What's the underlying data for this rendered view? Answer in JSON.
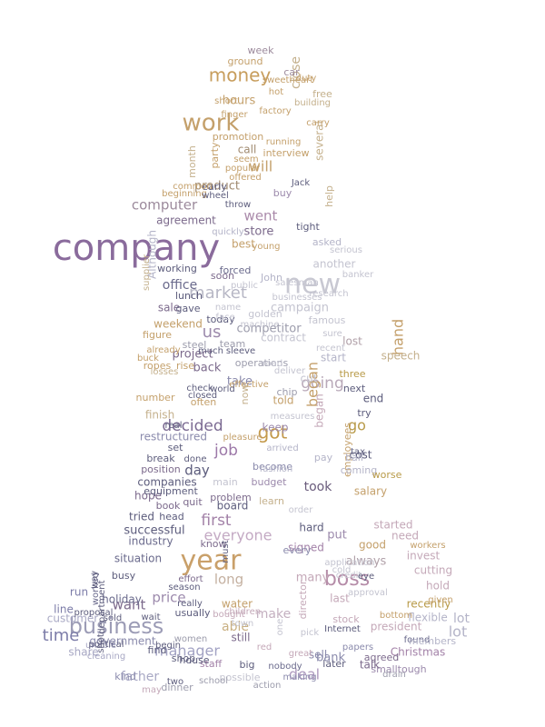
{
  "palette": {
    "background": "#ffffff",
    "purple": "#8a6b9c",
    "tan": "#c9a06a",
    "gray": "#b9b9c4",
    "navy": "#34406d",
    "teal": "#6aa59a",
    "lavender": "#a992c8",
    "pink": "#c79aae"
  },
  "words": [
    {
      "text": "company",
      "color": "#8a6b9c"
    },
    {
      "text": "year",
      "color": "#c9a06a"
    },
    {
      "text": "business",
      "color": "#9c9cb6"
    },
    {
      "text": "new",
      "color": "#c8c8d2"
    },
    {
      "text": "work",
      "color": "#c4a06b"
    },
    {
      "text": "boss",
      "color": "#b58ca8"
    },
    {
      "text": "money",
      "color": "#c79d5c"
    },
    {
      "text": "market",
      "color": "#b7b7c5"
    },
    {
      "text": "decided",
      "color": "#7b6a92"
    },
    {
      "text": "job",
      "color": "#9c78a8"
    },
    {
      "text": "got",
      "color": "#c49a4c"
    },
    {
      "text": "going",
      "color": "#b9a9b9"
    },
    {
      "text": "time",
      "color": "#7c7ca8"
    },
    {
      "text": "manager",
      "color": "#a3a3c4"
    },
    {
      "text": "computer",
      "color": "#9c8a9c"
    },
    {
      "text": "took",
      "color": "#6a5c7c"
    },
    {
      "text": "first",
      "color": "#a382a8"
    },
    {
      "text": "everyone",
      "color": "#c4aac4"
    },
    {
      "text": "went",
      "color": "#aa8aaa"
    },
    {
      "text": "will",
      "color": "#c4a06b"
    },
    {
      "text": "us",
      "color": "#9c8aac"
    },
    {
      "text": "day",
      "color": "#5c5c7c"
    },
    {
      "text": "began",
      "color": "#c4a06b"
    },
    {
      "text": "go",
      "color": "#b89a48"
    },
    {
      "text": "price",
      "color": "#9c8aac"
    },
    {
      "text": "father",
      "color": "#a8a8c4"
    },
    {
      "text": "want",
      "color": "#7c6a8c"
    },
    {
      "text": "able",
      "color": "#c9b083"
    },
    {
      "text": "make",
      "color": "#c4b0c0"
    },
    {
      "text": "deal",
      "color": "#b09cc0"
    },
    {
      "text": "bank",
      "color": "#8a8aac"
    },
    {
      "text": "Christmas",
      "color": "#a382a8"
    },
    {
      "text": "lot",
      "color": "#b4b4c8"
    },
    {
      "text": "hand",
      "color": "#c4a06b"
    },
    {
      "text": "hours",
      "color": "#c4a06b"
    },
    {
      "text": "close",
      "color": "#c4b08c"
    },
    {
      "text": "product",
      "color": "#a08a70"
    },
    {
      "text": "store",
      "color": "#7c6a8c"
    },
    {
      "text": "office",
      "color": "#6a6a8c"
    },
    {
      "text": "successful",
      "color": "#5c5c7c"
    },
    {
      "text": "holiday",
      "color": "#6a6a8c"
    },
    {
      "text": "industry",
      "color": "#6a6a8c"
    },
    {
      "text": "situation",
      "color": "#6a6a8c"
    },
    {
      "text": "government",
      "color": "#8a8aac"
    },
    {
      "text": "customer",
      "color": "#a8a8c4"
    },
    {
      "text": "president",
      "color": "#c4a8b8"
    },
    {
      "text": "project",
      "color": "#7c6a8c"
    },
    {
      "text": "back",
      "color": "#7c6a8c"
    },
    {
      "text": "competitor",
      "color": "#9c9cac"
    },
    {
      "text": "campaign",
      "color": "#c4c4d0"
    },
    {
      "text": "agreement",
      "color": "#7c6a8c"
    },
    {
      "text": "best",
      "color": "#c4a06b"
    },
    {
      "text": "call",
      "color": "#a08a70"
    },
    {
      "text": "party",
      "color": "#c4a06b"
    },
    {
      "text": "several",
      "color": "#c4b08c"
    },
    {
      "text": "month",
      "color": "#c4b08c"
    },
    {
      "text": "week",
      "color": "#9c8a9c"
    },
    {
      "text": "ground",
      "color": "#c4a06b"
    },
    {
      "text": "car",
      "color": "#9c8a9c"
    },
    {
      "text": "line",
      "color": "#7c7ca8"
    },
    {
      "text": "run",
      "color": "#7c7ca8"
    },
    {
      "text": "sale",
      "color": "#7c6a8c"
    },
    {
      "text": "found",
      "color": "#6a6a8c"
    },
    {
      "text": "flexible",
      "color": "#b4b4c8"
    },
    {
      "text": "recently",
      "color": "#b89a48"
    },
    {
      "text": "smalltough",
      "color": "#9c8aac"
    },
    {
      "text": "sell",
      "color": "#8a8aac"
    },
    {
      "text": "staff",
      "color": "#a382a8"
    },
    {
      "text": "talk",
      "color": "#7c6a8c"
    },
    {
      "text": "share",
      "color": "#a8a8c4"
    },
    {
      "text": "kind",
      "color": "#8a8aac"
    },
    {
      "text": "nobody",
      "color": "#6a6a8c"
    },
    {
      "text": "big",
      "color": "#5c5c7c"
    },
    {
      "text": "still",
      "color": "#7c6a8c"
    },
    {
      "text": "long",
      "color": "#c4b0a0"
    },
    {
      "text": "many",
      "color": "#c4a8b8"
    },
    {
      "text": "last",
      "color": "#c4a8b8"
    },
    {
      "text": "good",
      "color": "#c4a06b"
    },
    {
      "text": "always",
      "color": "#b0a0a8"
    },
    {
      "text": "put",
      "color": "#9c8aac"
    },
    {
      "text": "need",
      "color": "#c4a8b8"
    },
    {
      "text": "started",
      "color": "#c4a8b8"
    },
    {
      "text": "hold",
      "color": "#c4a8b8"
    },
    {
      "text": "cutting",
      "color": "#c4a8b8"
    },
    {
      "text": "invest",
      "color": "#c4a8b8"
    },
    {
      "text": "hard",
      "color": "#5c5c7c"
    },
    {
      "text": "signed",
      "color": "#a382a8"
    },
    {
      "text": "every",
      "color": "#8a8aac"
    },
    {
      "text": "board",
      "color": "#5c5c7c"
    },
    {
      "text": "problem",
      "color": "#7c6a8c"
    },
    {
      "text": "learn",
      "color": "#c4b08c"
    },
    {
      "text": "budget",
      "color": "#9c8aac"
    },
    {
      "text": "become",
      "color": "#8a8aac"
    },
    {
      "text": "keep",
      "color": "#9c8aac"
    },
    {
      "text": "told",
      "color": "#c4a06b"
    },
    {
      "text": "take",
      "color": "#8a8aac"
    },
    {
      "text": "now",
      "color": "#c4b08c"
    },
    {
      "text": "start",
      "color": "#b4b4c8"
    },
    {
      "text": "lost",
      "color": "#b0a0a8"
    },
    {
      "text": "contract",
      "color": "#c4c4d0"
    },
    {
      "text": "operations",
      "color": "#9c9cac"
    },
    {
      "text": "famous",
      "color": "#c4c4d0"
    },
    {
      "text": "golden",
      "color": "#c4c4d0"
    },
    {
      "text": "forced",
      "color": "#6a6a8c"
    },
    {
      "text": "another",
      "color": "#c4c4d0"
    },
    {
      "text": "John",
      "color": "#b4b4c8"
    },
    {
      "text": "soon",
      "color": "#7c6a8c"
    },
    {
      "text": "gave",
      "color": "#5c5c7c"
    },
    {
      "text": "lunch",
      "color": "#5c5c7c"
    },
    {
      "text": "working",
      "color": "#5c5c7c"
    },
    {
      "text": "today",
      "color": "#5c5c7c"
    },
    {
      "text": "weekend",
      "color": "#c4a06b"
    },
    {
      "text": "figure",
      "color": "#c4a06b"
    },
    {
      "text": "steel",
      "color": "#9c9cac"
    },
    {
      "text": "team",
      "color": "#9c9cac"
    },
    {
      "text": "ropes",
      "color": "#c4a06b"
    },
    {
      "text": "rise",
      "color": "#c4a06b"
    },
    {
      "text": "number",
      "color": "#c4a06b"
    },
    {
      "text": "finish",
      "color": "#c4b08c"
    },
    {
      "text": "often",
      "color": "#c4a06b"
    },
    {
      "text": "chip",
      "color": "#9c9cac"
    },
    {
      "text": "cut",
      "color": "#c4c4d0"
    },
    {
      "text": "next",
      "color": "#5c5c7c"
    },
    {
      "text": "three",
      "color": "#b89a48"
    },
    {
      "text": "end",
      "color": "#5c5c7c"
    },
    {
      "text": "try",
      "color": "#5c5c7c"
    },
    {
      "text": "employees",
      "color": "#c4a06b"
    },
    {
      "text": "cost",
      "color": "#5c5c7c"
    },
    {
      "text": "ball",
      "color": "#b4b4c8"
    },
    {
      "text": "coming",
      "color": "#b4b4c8"
    },
    {
      "text": "restructured",
      "color": "#8a8aac"
    },
    {
      "text": "companies",
      "color": "#5c5c7c"
    },
    {
      "text": "set",
      "color": "#5c5c7c"
    },
    {
      "text": "position",
      "color": "#7c6a8c"
    },
    {
      "text": "hope",
      "color": "#7c6a8c"
    },
    {
      "text": "book",
      "color": "#7c6a8c"
    },
    {
      "text": "quit",
      "color": "#7c6a8c"
    },
    {
      "text": "tried",
      "color": "#5c5c7c"
    },
    {
      "text": "head",
      "color": "#5c5c7c"
    },
    {
      "text": "know",
      "color": "#7c6a8c"
    },
    {
      "text": "busy",
      "color": "#5c5c7c"
    },
    {
      "text": "really",
      "color": "#5c5c7c"
    },
    {
      "text": "usually",
      "color": "#5c5c7c"
    },
    {
      "text": "water",
      "color": "#c4a06b"
    },
    {
      "text": "director",
      "color": "#c4a8b8"
    },
    {
      "text": "lot",
      "color": "#b4b4c8"
    },
    {
      "text": "speech",
      "color": "#c4b08c"
    },
    {
      "text": "promotion",
      "color": "#c4a06b"
    },
    {
      "text": "interview",
      "color": "#c4a06b"
    },
    {
      "text": "early",
      "color": "#5c5c7c"
    },
    {
      "text": "buy",
      "color": "#9c8aac"
    },
    {
      "text": "help",
      "color": "#c4b08c"
    },
    {
      "text": "free",
      "color": "#c4b08c"
    },
    {
      "text": "building",
      "color": "#c4b08c"
    },
    {
      "text": "Although",
      "color": "#b4b4c8"
    },
    {
      "text": "asked",
      "color": "#b4b4c8"
    },
    {
      "text": "tight",
      "color": "#5c5c7c"
    },
    {
      "text": "worse",
      "color": "#b89a48"
    },
    {
      "text": "salary",
      "color": "#c4a06b"
    },
    {
      "text": "pay",
      "color": "#b4b4c8"
    },
    {
      "text": "members",
      "color": "#b4b4c8"
    },
    {
      "text": "began",
      "color": "#c4a8b8"
    },
    {
      "text": "later",
      "color": "#5c5c7c"
    },
    {
      "text": "papers",
      "color": "#8a8aac"
    },
    {
      "text": "possible",
      "color": "#c4c4d0"
    },
    {
      "text": "dinner",
      "color": "#9c9cac"
    },
    {
      "text": "two",
      "color": "#5c5c7c"
    },
    {
      "text": "shop",
      "color": "#5c5c7c"
    },
    {
      "text": "house",
      "color": "#5c5c7c"
    },
    {
      "text": "agreed",
      "color": "#7c6a8c"
    },
    {
      "text": "stock",
      "color": "#c4a8b8"
    },
    {
      "text": "making",
      "color": "#8a8aac"
    },
    {
      "text": "action",
      "color": "#9c9cac"
    },
    {
      "text": "children",
      "color": "#c4a8b8"
    },
    {
      "text": "women",
      "color": "#9c9cac"
    },
    {
      "text": "find",
      "color": "#5c5c7c"
    },
    {
      "text": "unable",
      "color": "#a8a8c4"
    },
    {
      "text": "worked",
      "color": "#6a6a8c"
    },
    {
      "text": "department",
      "color": "#5c5c7c"
    },
    {
      "text": "season",
      "color": "#5c5c7c"
    },
    {
      "text": "wait",
      "color": "#5c5c7c"
    },
    {
      "text": "effort",
      "color": "#7c6a8c"
    },
    {
      "text": "equipment",
      "color": "#5c5c7c"
    },
    {
      "text": "break",
      "color": "#5c5c7c"
    },
    {
      "text": "done",
      "color": "#5c5c7c"
    },
    {
      "text": "real",
      "color": "#5c5c7c"
    },
    {
      "text": "main",
      "color": "#c4c4d0"
    },
    {
      "text": "fashion",
      "color": "#b4b4c8"
    },
    {
      "text": "arrived",
      "color": "#b4b4c8"
    },
    {
      "text": "deliver",
      "color": "#c4c4d0"
    },
    {
      "text": "measures",
      "color": "#c4c4d0"
    },
    {
      "text": "pleasure",
      "color": "#c4a06b"
    },
    {
      "text": "effective",
      "color": "#c4a06b"
    },
    {
      "text": "closed",
      "color": "#5c5c7c"
    },
    {
      "text": "world",
      "color": "#5c5c7c"
    },
    {
      "text": "check",
      "color": "#5c5c7c"
    },
    {
      "text": "losses",
      "color": "#c4b08c"
    },
    {
      "text": "much",
      "color": "#5c5c7c"
    },
    {
      "text": "sleeve",
      "color": "#5c5c7c"
    },
    {
      "text": "already",
      "color": "#c4a06b"
    },
    {
      "text": "buck",
      "color": "#c4a06b"
    },
    {
      "text": "machine",
      "color": "#c4c4d0"
    },
    {
      "text": "businesses",
      "color": "#c4c4d0"
    },
    {
      "text": "recent",
      "color": "#c4c4d0"
    },
    {
      "text": "sure",
      "color": "#c4c4d0"
    },
    {
      "text": "sweetheart",
      "color": "#c4a06b"
    },
    {
      "text": "hot",
      "color": "#c4a06b"
    },
    {
      "text": "short",
      "color": "#c4a06b"
    },
    {
      "text": "finger",
      "color": "#c4a06b"
    },
    {
      "text": "factory",
      "color": "#c4a06b"
    },
    {
      "text": "running",
      "color": "#c4a06b"
    },
    {
      "text": "carry",
      "color": "#c4a06b"
    },
    {
      "text": "duty",
      "color": "#c4a06b"
    },
    {
      "text": "seem",
      "color": "#c4a06b"
    },
    {
      "text": "popular",
      "color": "#c4a06b"
    },
    {
      "text": "offered",
      "color": "#c4a06b"
    },
    {
      "text": "common",
      "color": "#c4a06b"
    },
    {
      "text": "beginning",
      "color": "#c4a06b"
    },
    {
      "text": "wheel",
      "color": "#5c5c7c"
    },
    {
      "text": "throw",
      "color": "#5c5c7c"
    },
    {
      "text": "young",
      "color": "#c4a06b"
    },
    {
      "text": "quickly",
      "color": "#b4b4c8"
    },
    {
      "text": "Jack",
      "color": "#5c5c7c"
    },
    {
      "text": "supplier",
      "color": "#c4b08c"
    },
    {
      "text": "serious",
      "color": "#c4c4d0"
    },
    {
      "text": "research",
      "color": "#c4c4d0"
    },
    {
      "text": "banker",
      "color": "#c4c4d0"
    },
    {
      "text": "public",
      "color": "#c4c4d0"
    },
    {
      "text": "salesman",
      "color": "#c4c4d0"
    },
    {
      "text": "name",
      "color": "#c4c4d0"
    },
    {
      "text": "face",
      "color": "#c4c4d0"
    },
    {
      "text": "order",
      "color": "#c4c4d0"
    },
    {
      "text": "must",
      "color": "#5c5c7c"
    },
    {
      "text": "application",
      "color": "#c4c4d0"
    },
    {
      "text": "credit",
      "color": "#c4c4d0"
    },
    {
      "text": "cold",
      "color": "#c4c4d0"
    },
    {
      "text": "approval",
      "color": "#c4c4d0"
    },
    {
      "text": "bottom",
      "color": "#c4a06b"
    },
    {
      "text": "given",
      "color": "#c4a06b"
    },
    {
      "text": "workers",
      "color": "#c4a06b"
    },
    {
      "text": "great",
      "color": "#c4a8b8"
    },
    {
      "text": "Internet",
      "color": "#5c5c7c"
    },
    {
      "text": "pick",
      "color": "#c4c4d0"
    },
    {
      "text": "one",
      "color": "#c4c4d0"
    },
    {
      "text": "red",
      "color": "#c4a8b8"
    },
    {
      "text": "town",
      "color": "#c4c4d0"
    },
    {
      "text": "bought",
      "color": "#c4a8b8"
    },
    {
      "text": "may",
      "color": "#c4a8b8"
    },
    {
      "text": "school",
      "color": "#9c9cac"
    },
    {
      "text": "drain",
      "color": "#9c9cac"
    },
    {
      "text": "begin",
      "color": "#5c5c7c"
    },
    {
      "text": "proposal",
      "color": "#5c5c7c"
    },
    {
      "text": "sold",
      "color": "#5c5c7c"
    },
    {
      "text": "cleaning",
      "color": "#a8a8c4"
    },
    {
      "text": "shot",
      "color": "#5c5c7c"
    },
    {
      "text": "way",
      "color": "#5c5c7c"
    },
    {
      "text": "political",
      "color": "#5c5c7c"
    },
    {
      "text": "tax",
      "color": "#5c5c7c"
    },
    {
      "text": "eye",
      "color": "#5c5c7c"
    },
    {
      "text": "road",
      "color": "#c4c4d0"
    }
  ]
}
